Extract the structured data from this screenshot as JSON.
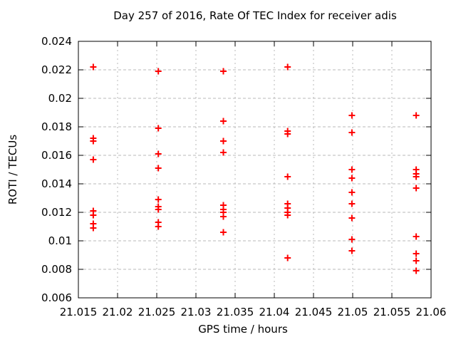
{
  "window": {
    "background": "#ffffff"
  },
  "chart_data": {
    "type": "scatter",
    "title": "Day 257 of 2016, Rate Of TEC Index for receiver adis",
    "xlabel": "GPS time / hours",
    "ylabel": "ROTI / TECUs",
    "xlim": [
      21.015,
      21.06
    ],
    "ylim": [
      0.006,
      0.024
    ],
    "xticks": [
      21.015,
      21.02,
      21.025,
      21.03,
      21.035,
      21.04,
      21.045,
      21.05,
      21.055,
      21.06
    ],
    "xtick_labels": [
      "21.015",
      "21.02",
      "21.025",
      "21.03",
      "21.035",
      "21.04",
      "21.045",
      "21.05",
      "21.055",
      "21.06"
    ],
    "yticks": [
      0.006,
      0.008,
      0.01,
      0.012,
      0.014,
      0.016,
      0.018,
      0.02,
      0.022,
      0.024
    ],
    "ytick_labels": [
      "0.006",
      "0.008",
      "0.01",
      "0.012",
      "0.014",
      "0.016",
      "0.018",
      "0.02",
      "0.022",
      "0.024"
    ],
    "grid": true,
    "legend": "none",
    "marker": "plus",
    "colors": {
      "marker": "#ff0000",
      "grid": "#b9b9b9",
      "border": "#000000",
      "text": "#000000"
    },
    "series": [
      {
        "name": "ROTI",
        "points": [
          [
            21.0169,
            0.0222
          ],
          [
            21.0169,
            0.0172
          ],
          [
            21.0169,
            0.017
          ],
          [
            21.0169,
            0.0157
          ],
          [
            21.0169,
            0.0121
          ],
          [
            21.0169,
            0.0118
          ],
          [
            21.0169,
            0.0112
          ],
          [
            21.0169,
            0.0109
          ],
          [
            21.0252,
            0.0219
          ],
          [
            21.0252,
            0.0179
          ],
          [
            21.0252,
            0.0161
          ],
          [
            21.0252,
            0.0151
          ],
          [
            21.0252,
            0.0129
          ],
          [
            21.0252,
            0.0124
          ],
          [
            21.0252,
            0.0122
          ],
          [
            21.0252,
            0.0113
          ],
          [
            21.0252,
            0.011
          ],
          [
            21.0335,
            0.0219
          ],
          [
            21.0335,
            0.0184
          ],
          [
            21.0335,
            0.017
          ],
          [
            21.0335,
            0.0162
          ],
          [
            21.0335,
            0.0125
          ],
          [
            21.0335,
            0.0122
          ],
          [
            21.0335,
            0.012
          ],
          [
            21.0335,
            0.0117
          ],
          [
            21.0335,
            0.0106
          ],
          [
            21.0417,
            0.0222
          ],
          [
            21.0417,
            0.0177
          ],
          [
            21.0417,
            0.0175
          ],
          [
            21.0417,
            0.0145
          ],
          [
            21.0417,
            0.0126
          ],
          [
            21.0417,
            0.0123
          ],
          [
            21.0417,
            0.012
          ],
          [
            21.0417,
            0.0118
          ],
          [
            21.0417,
            0.0088
          ],
          [
            21.0499,
            0.0188
          ],
          [
            21.0499,
            0.0176
          ],
          [
            21.0499,
            0.015
          ],
          [
            21.0499,
            0.0144
          ],
          [
            21.0499,
            0.0134
          ],
          [
            21.0499,
            0.0126
          ],
          [
            21.0499,
            0.0116
          ],
          [
            21.0499,
            0.0101
          ],
          [
            21.0499,
            0.0093
          ],
          [
            21.0581,
            0.0188
          ],
          [
            21.0581,
            0.015
          ],
          [
            21.0581,
            0.0147
          ],
          [
            21.0581,
            0.0145
          ],
          [
            21.0581,
            0.0137
          ],
          [
            21.0581,
            0.0103
          ],
          [
            21.0581,
            0.0091
          ],
          [
            21.0581,
            0.0086
          ],
          [
            21.0581,
            0.0079
          ]
        ]
      }
    ]
  }
}
